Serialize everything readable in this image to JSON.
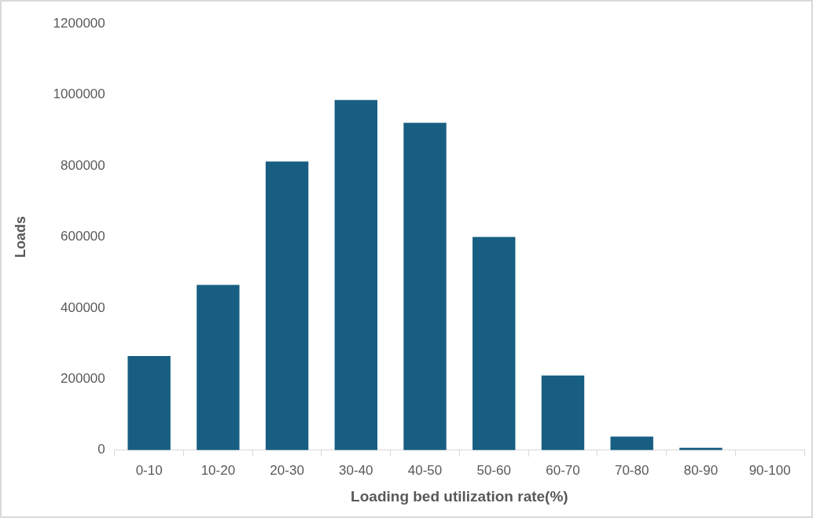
{
  "chart_data": {
    "type": "bar",
    "xlabel": "Loading bed utilization rate(%)",
    "ylabel": "Loads",
    "categories": [
      "0-10",
      "10-20",
      "20-30",
      "30-40",
      "40-50",
      "50-60",
      "60-70",
      "70-80",
      "80-90",
      "90-100"
    ],
    "values": [
      265000,
      465000,
      812000,
      985000,
      921000,
      600000,
      210000,
      38000,
      7000,
      null
    ],
    "color": "#175e82",
    "ylim": [
      0,
      1200000
    ],
    "yticks": [
      0,
      200000,
      400000,
      600000,
      800000,
      1000000,
      1200000
    ],
    "grid": false,
    "legend": false
  }
}
